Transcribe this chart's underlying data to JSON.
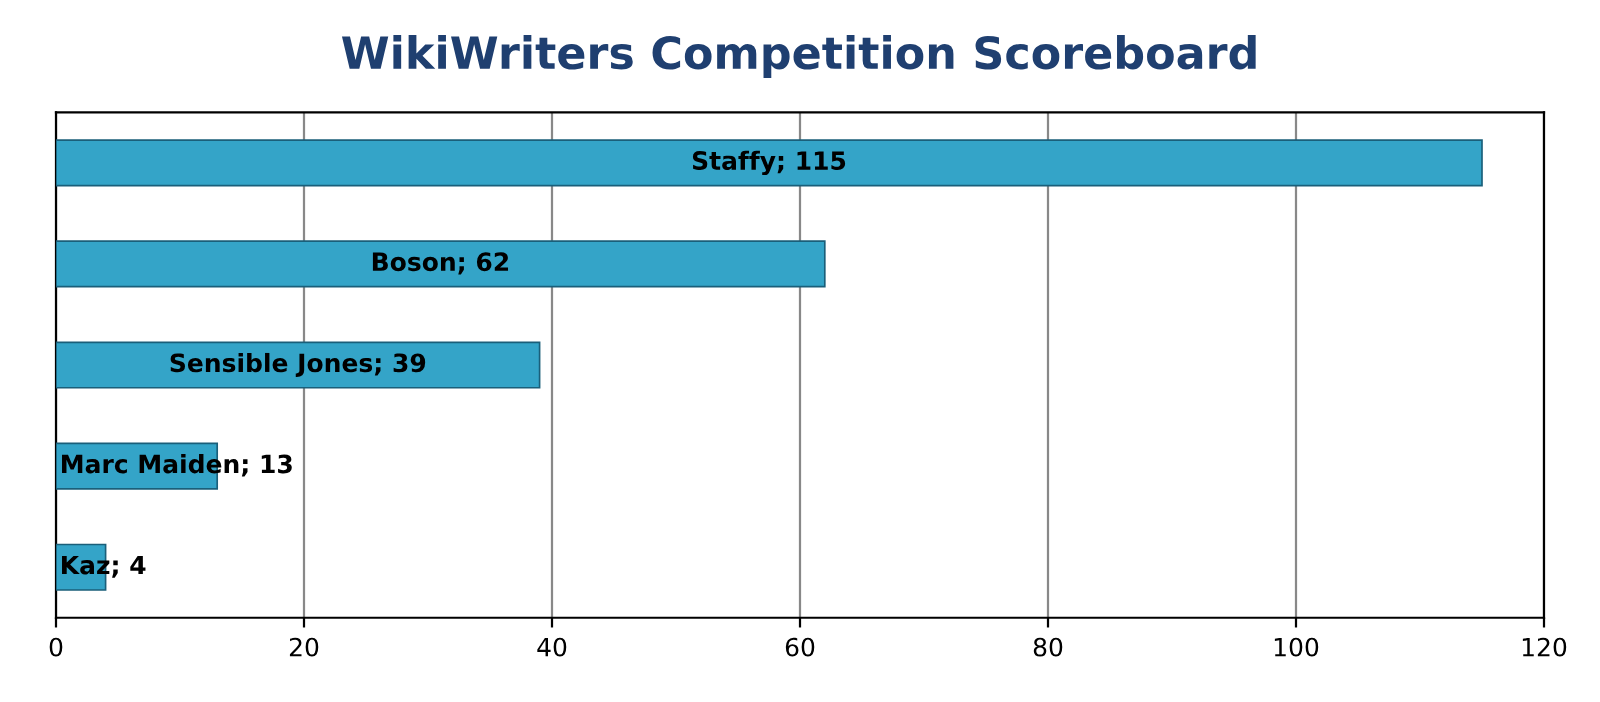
{
  "chart_data": {
    "type": "bar",
    "orientation": "horizontal",
    "title": "WikiWriters Competition Scoreboard",
    "categories": [
      null,
      null,
      null,
      null,
      null
    ],
    "values": [
      115,
      62,
      39,
      13,
      4
    ],
    "value_labels": [
      "Staffy; 115",
      "Boson; 62",
      "Sensible Jones; 39",
      "Marc Maiden; 13",
      "Kaz; 4"
    ],
    "color": "#34a4c8",
    "xlim": [
      0,
      120
    ],
    "xticks": [
      0,
      20,
      40,
      60,
      80,
      100,
      120
    ],
    "grid": "x",
    "tick_labels": "x",
    "legend": false
  }
}
